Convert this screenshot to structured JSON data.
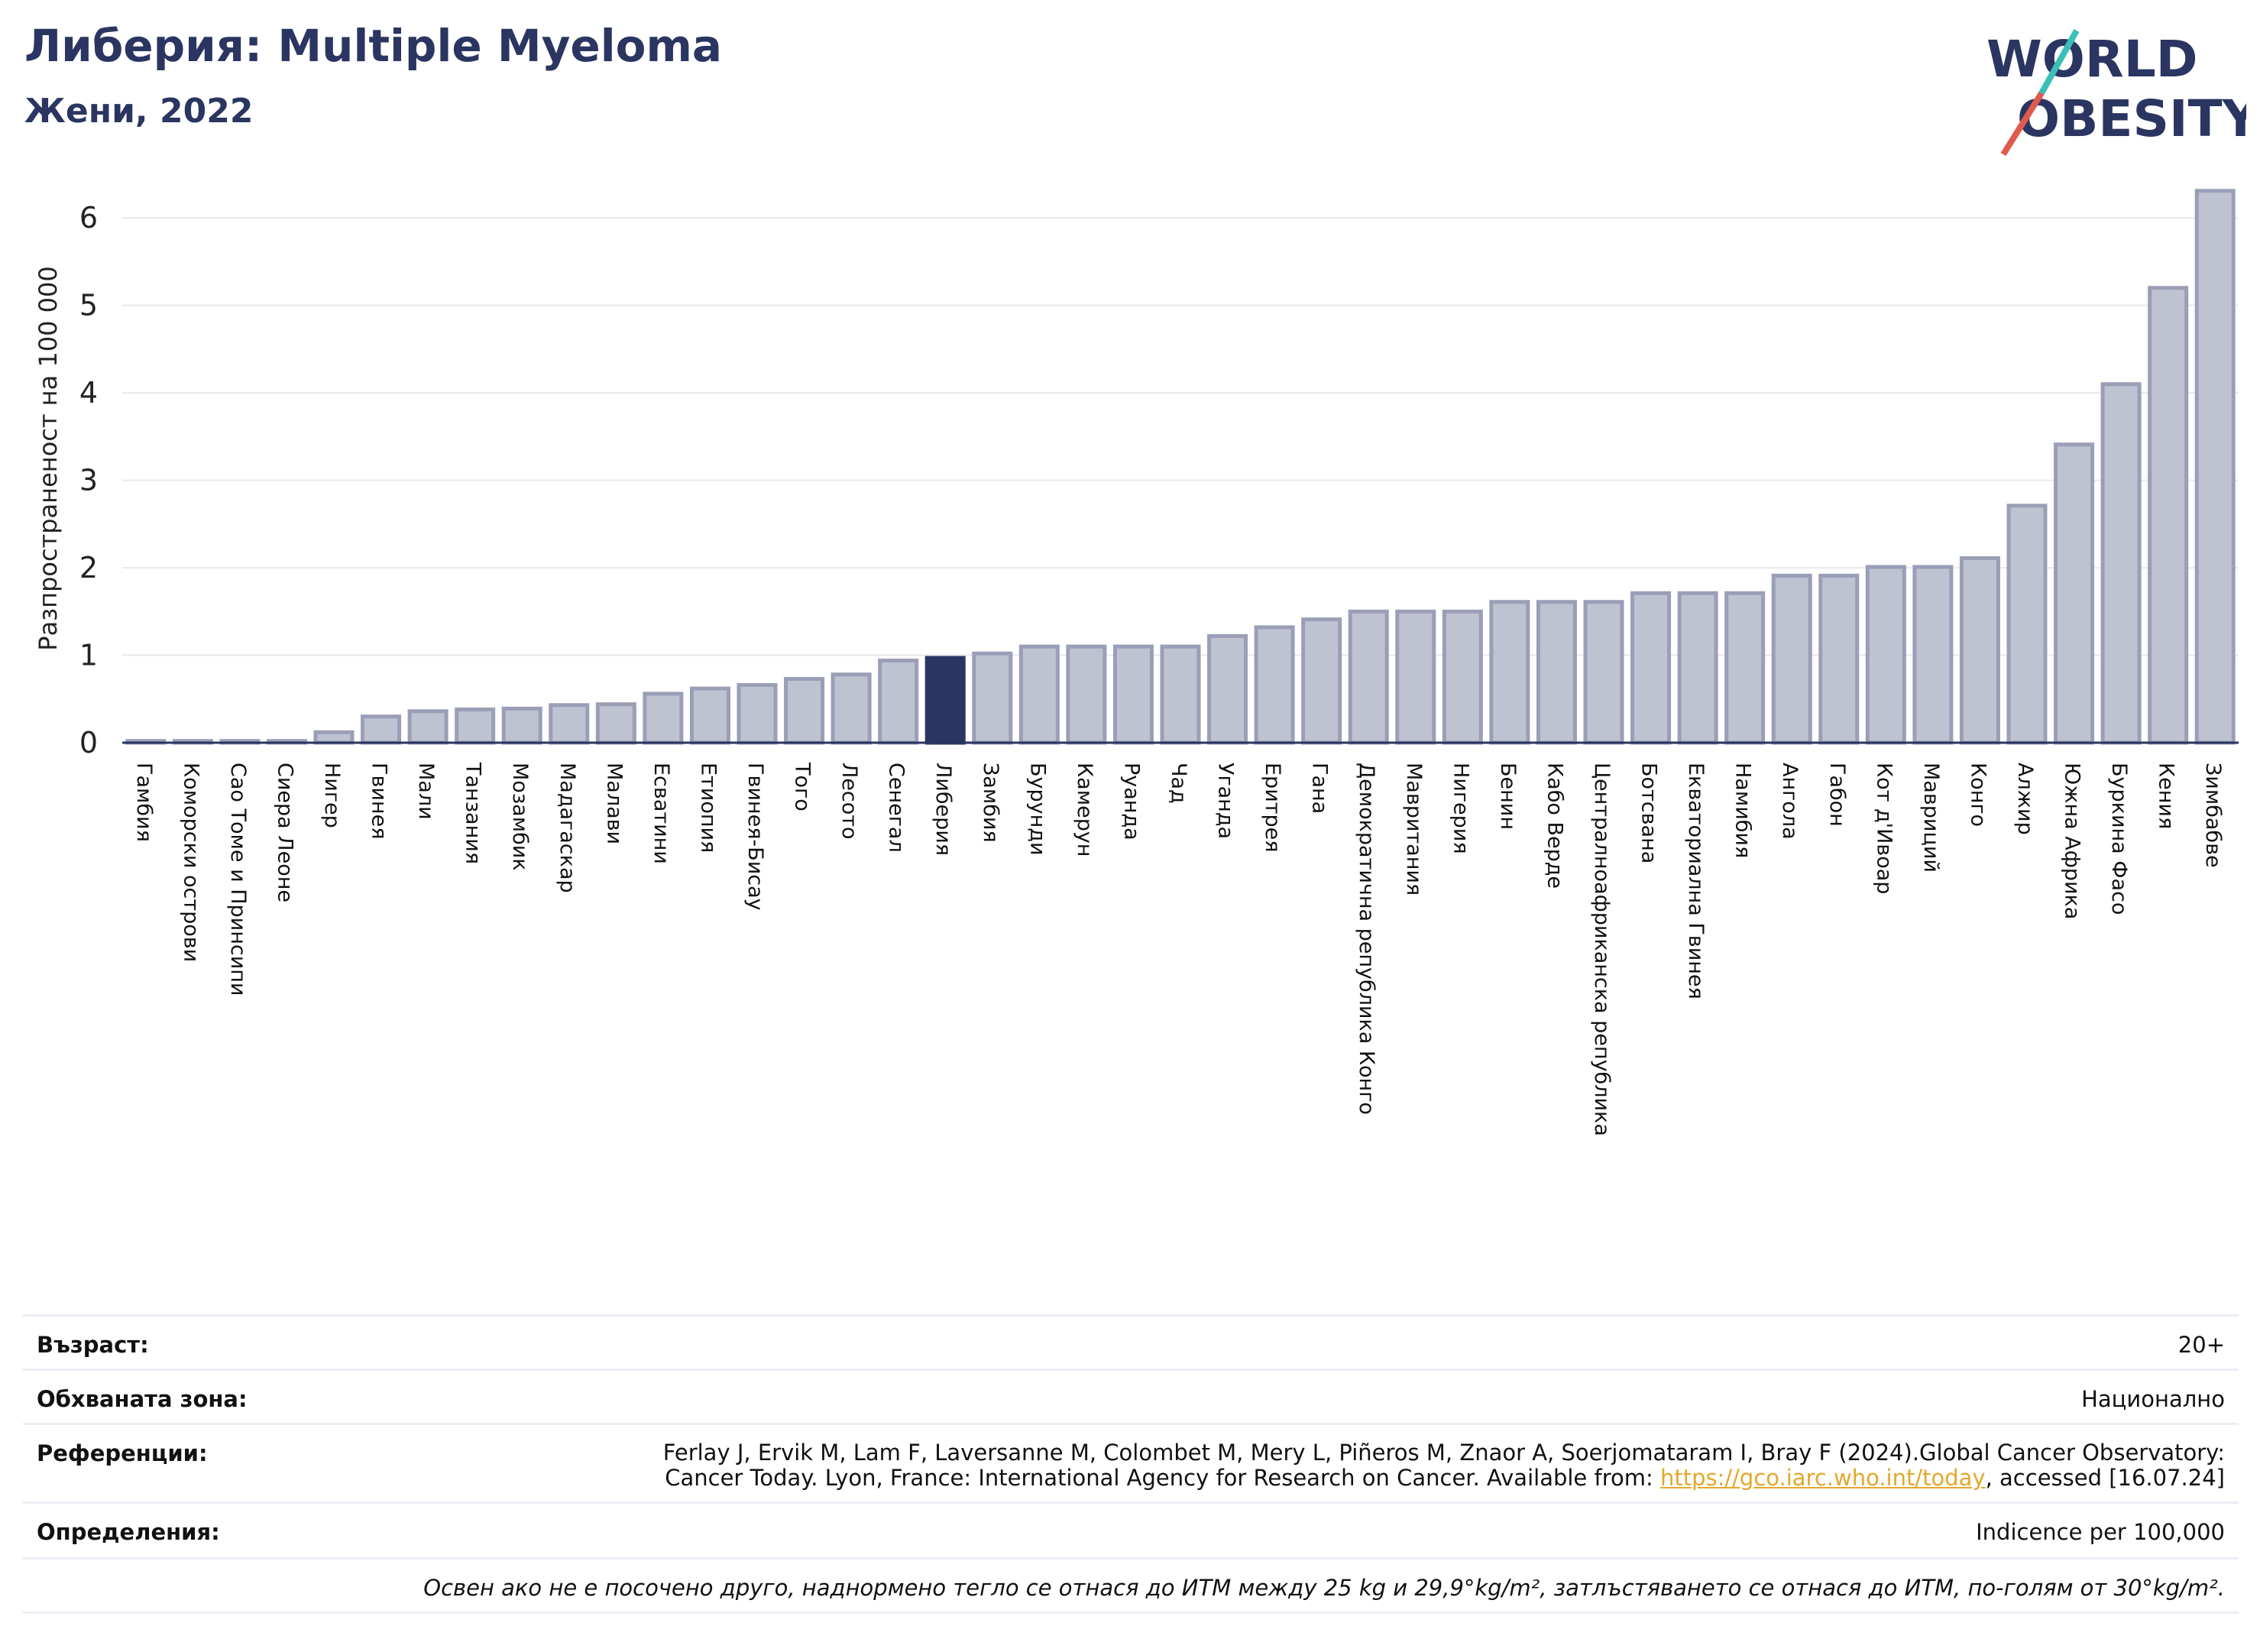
{
  "header": {
    "title": "Либерия: Multiple Myeloma",
    "subtitle": "Жени, 2022"
  },
  "logo": {
    "line1": "WORLD",
    "line2": "OBESITY",
    "colors": {
      "text": "#2b3561",
      "slash_red": "#e05a4e",
      "slash_teal": "#3bbfb8"
    }
  },
  "colors": {
    "bar": "#bfc2d0",
    "bar_edge": "#9a9eb6",
    "highlight": "#2b3561",
    "grid": "#e8e8ee",
    "axis": "#2b3561"
  },
  "chart_data": {
    "type": "bar",
    "ylabel": "Разпространеност  на 100 000",
    "ylim": [
      0,
      6.5
    ],
    "yticks": [
      0,
      1,
      2,
      3,
      4,
      5,
      6
    ],
    "highlight": "Либерия",
    "grid": true,
    "categories": [
      "Гамбия",
      "Коморски острови",
      "Сао Томе и Принсипи",
      "Сиера Леоне",
      "Нигер",
      "Гвинея",
      "Мали",
      "Танзания",
      "Мозамбик",
      "Мадагаскар",
      "Малави",
      "Есватини",
      "Етиопия",
      "Гвинея-Бисау",
      "Того",
      "Лесото",
      "Сенегал",
      "Либерия",
      "Замбия",
      "Бурунди",
      "Камерун",
      "Руанда",
      "Чад",
      "Уганда",
      "Еритрея",
      "Гана",
      "Демократична република Конго",
      "Мавритания",
      "Нигерия",
      "Бенин",
      "Кабо Верде",
      "Централноафриканска република",
      "Ботсвана",
      "Екваториална Гвинея",
      "Намибия",
      "Ангола",
      "Габон",
      "Кот д'Ивоар",
      "Мавриций",
      "Конго",
      "Алжир",
      "Южна Африка",
      "Буркина Фасо",
      "Кения",
      "Зимбабве"
    ],
    "values": [
      0.02,
      0.02,
      0.02,
      0.02,
      0.12,
      0.3,
      0.36,
      0.38,
      0.39,
      0.43,
      0.44,
      0.56,
      0.62,
      0.66,
      0.73,
      0.78,
      0.94,
      0.97,
      1.02,
      1.1,
      1.1,
      1.1,
      1.1,
      1.22,
      1.32,
      1.41,
      1.5,
      1.5,
      1.5,
      1.61,
      1.61,
      1.61,
      1.71,
      1.71,
      1.71,
      1.91,
      1.91,
      2.01,
      2.01,
      2.11,
      2.71,
      3.41,
      4.1,
      5.2,
      6.31
    ]
  },
  "info": {
    "age_label": "Възраст:",
    "age_value": "20+",
    "coverage_label": "Обхваната зона:",
    "coverage_value": "Национално",
    "references_label": "Референции:",
    "references_line1": "Ferlay J, Ervik M, Lam F, Laversanne M, Colombet M, Mery L, Piñeros M, Znaor A, Soerjomataram I, Bray F (2024).Global Cancer Observatory:",
    "references_line2_pre": "Cancer Today. Lyon, France: International Agency for Research on Cancer. Available from: ",
    "references_link": "https://gco.iarc.who.int/today",
    "references_line2_post": ", accessed [16.07.24]",
    "definitions_label": "Определения:",
    "definitions_value": "Indicence per 100,000",
    "note": "Освен ако не е посочено друго, наднормено тегло се отнася до ИТМ между 25 kg и 29,9°kg/m², затлъстяването се отнася до ИТМ, по-голям от 30°kg/m²."
  }
}
